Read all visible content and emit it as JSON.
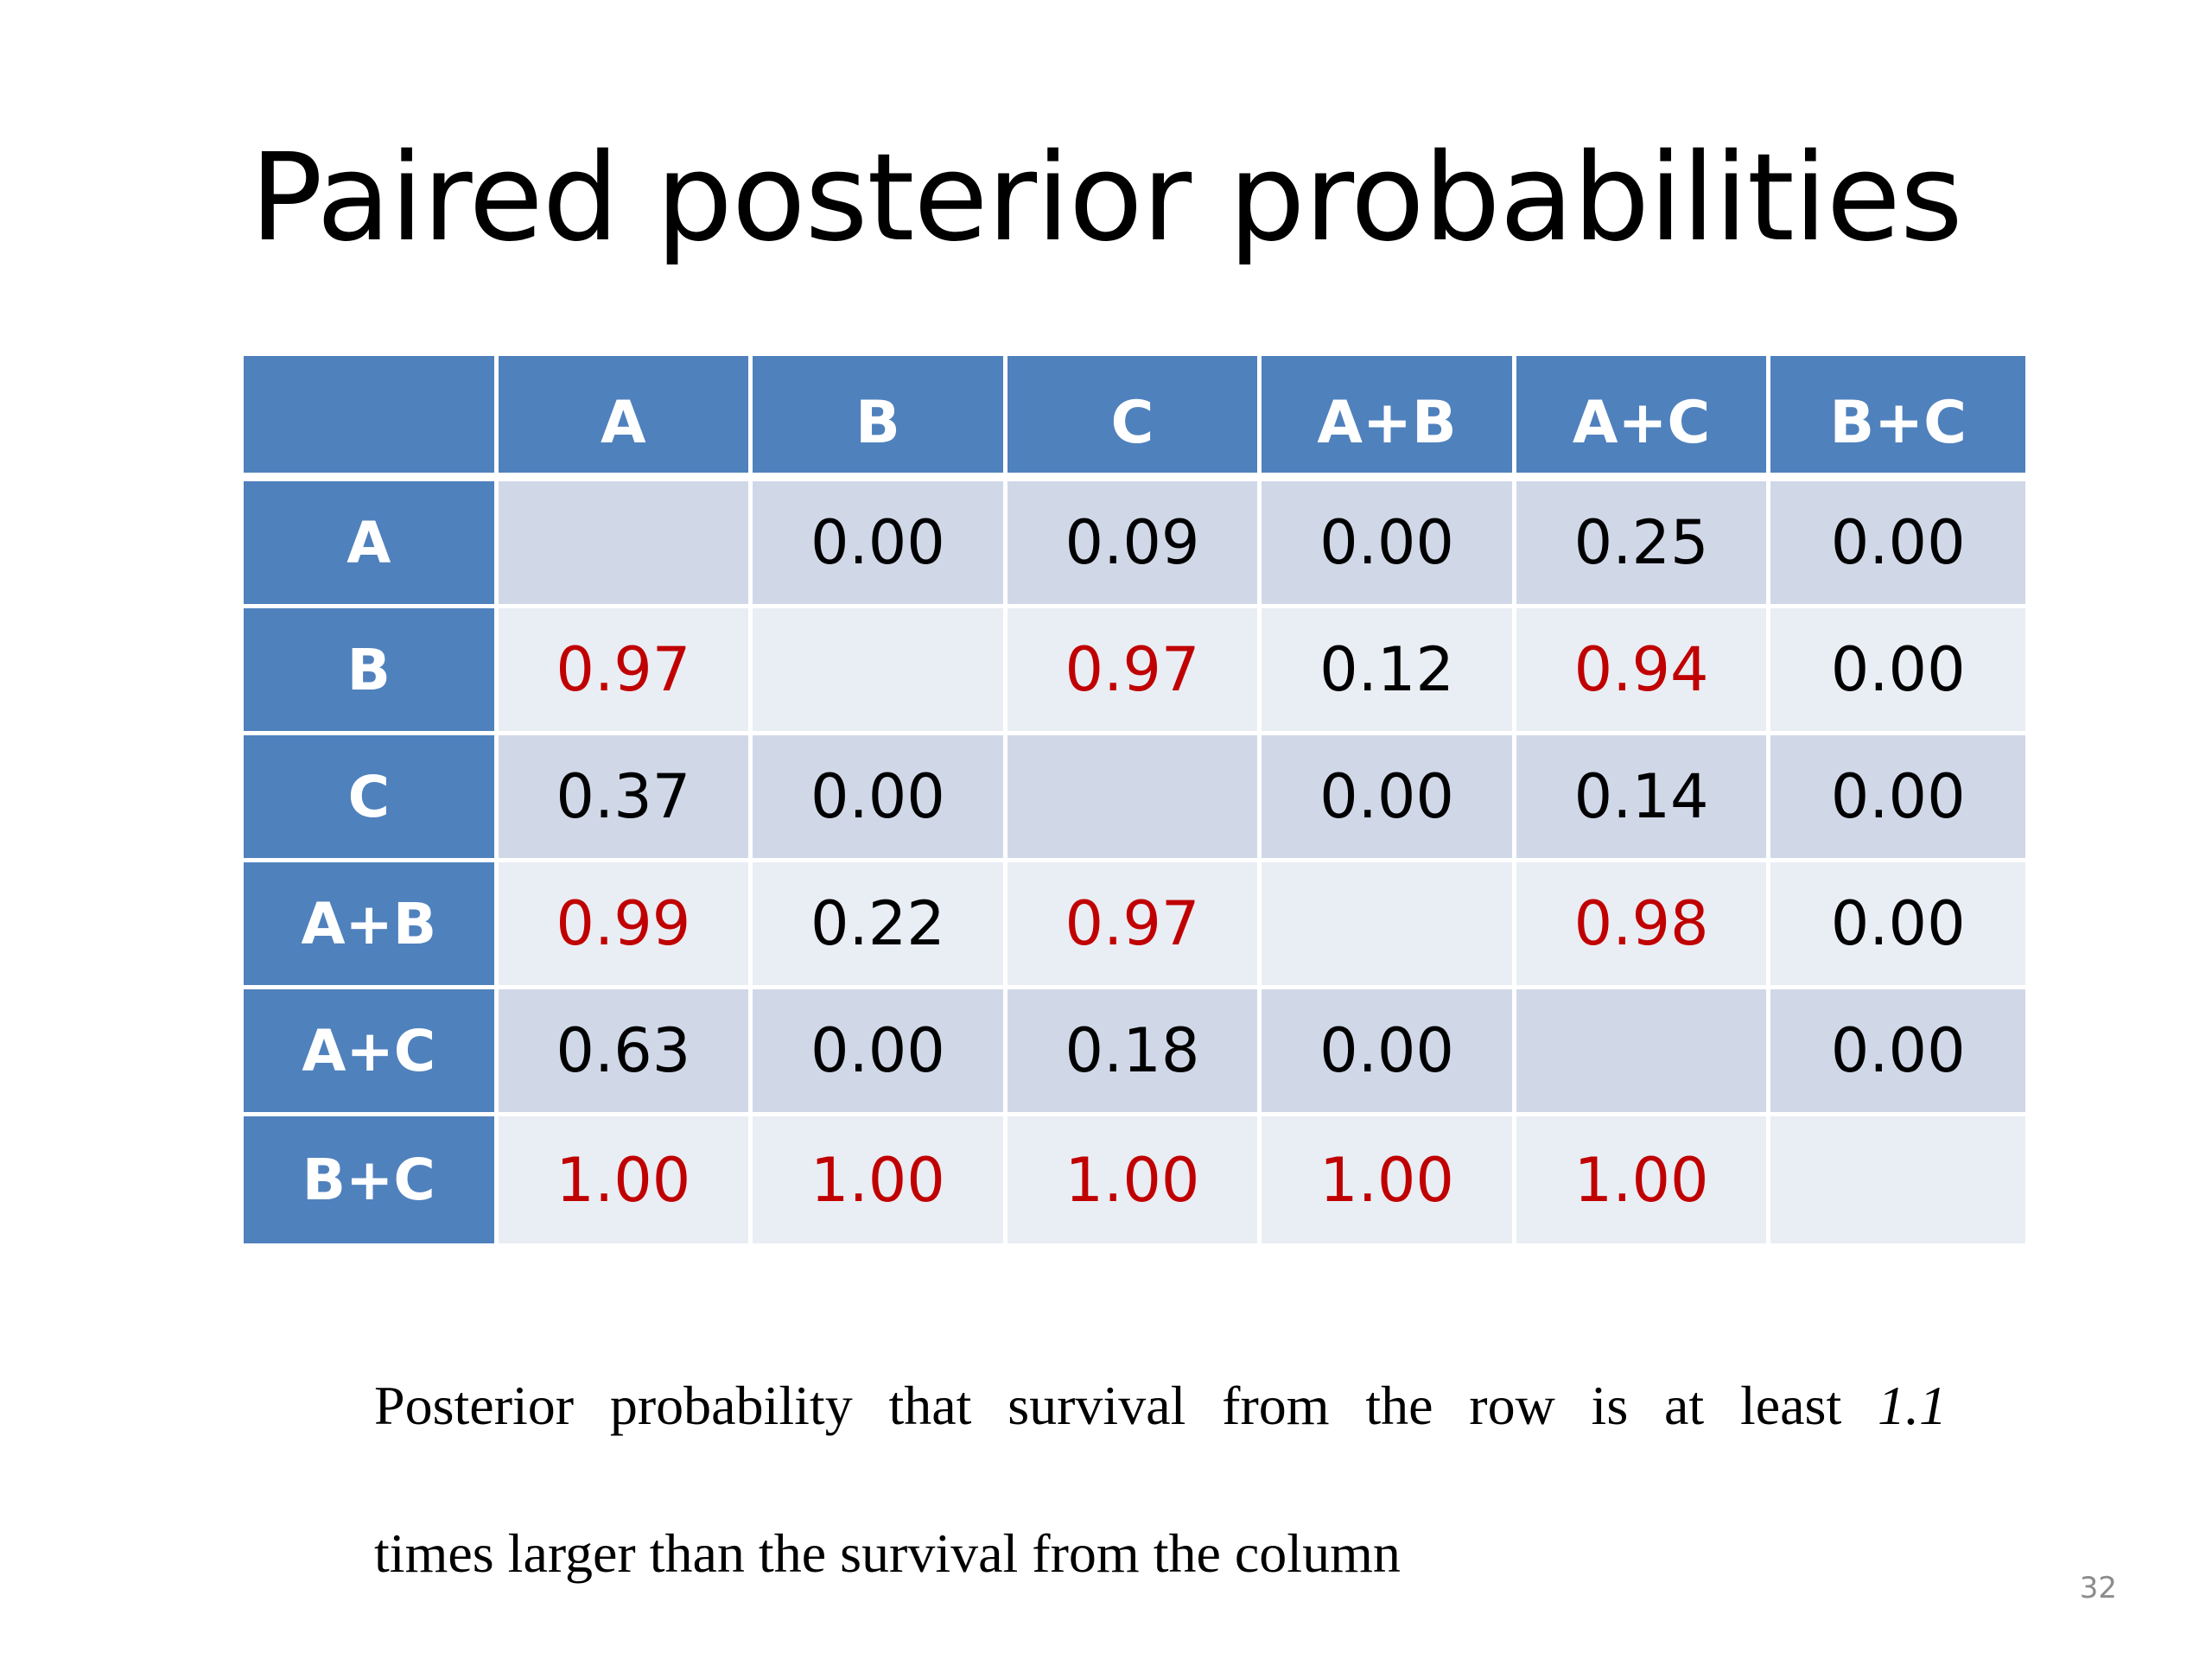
{
  "slide": {
    "title": "Paired posterior probabilities",
    "page_number": "32"
  },
  "table": {
    "corner": "",
    "columns": [
      "A",
      "B",
      "C",
      "A+B",
      "A+C",
      "B+C"
    ],
    "rows": [
      {
        "label": "A",
        "cells": [
          "",
          "0.00",
          "0.09",
          "0.00",
          "0.25",
          "0.00"
        ]
      },
      {
        "label": "B",
        "cells": [
          "0.97",
          "",
          "0.97",
          "0.12",
          "0.94",
          "0.00"
        ]
      },
      {
        "label": "C",
        "cells": [
          "0.37",
          "0.00",
          "",
          "0.00",
          "0.14",
          "0.00"
        ]
      },
      {
        "label": "A+B",
        "cells": [
          "0.99",
          "0.22",
          "0.97",
          "",
          "0.98",
          "0.00"
        ]
      },
      {
        "label": "A+C",
        "cells": [
          "0.63",
          "0.00",
          "0.18",
          "0.00",
          "",
          "0.00"
        ]
      },
      {
        "label": "B+C",
        "cells": [
          "1.00",
          "1.00",
          "1.00",
          "1.00",
          "1.00",
          ""
        ]
      }
    ],
    "highlight_color": "#c00000",
    "header_color": "#4f81bd"
  },
  "caption": {
    "line1_prefix": "Posterior probability that survival from the row is at least ",
    "line1_emph": "1.1",
    "line2": "times larger than the survival from the column"
  }
}
